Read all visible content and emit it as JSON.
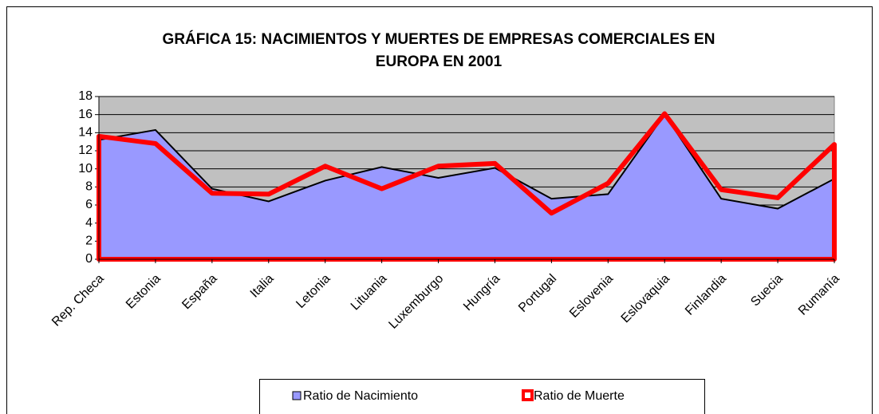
{
  "chart_data": {
    "type": "area",
    "title": "GRÁFICA 15: NACIMIENTOS Y MUERTES DE EMPRESAS COMERCIALES EN EUROPA EN 2001",
    "categories": [
      "Rep. Checa",
      "Estonia",
      "España",
      "Italia",
      "Letonia",
      "Lituania",
      "Luxemburgo",
      "Hungría",
      "Portugal",
      "Eslovenia",
      "Eslovaquia",
      "Finlandia",
      "Suecia",
      "Rumanía"
    ],
    "series": [
      {
        "name": "Ratio de Nacimiento",
        "color": "#9999ff",
        "values": [
          13.2,
          14.3,
          7.8,
          6.4,
          8.7,
          10.2,
          9.0,
          10.1,
          6.7,
          7.2,
          16.0,
          6.7,
          5.6,
          8.9
        ]
      },
      {
        "name": "Ratio de Muerte",
        "color": "#ff0000",
        "values": [
          13.6,
          12.8,
          7.3,
          7.2,
          10.3,
          7.8,
          10.3,
          10.6,
          5.1,
          8.4,
          16.1,
          7.7,
          6.8,
          12.7
        ]
      }
    ],
    "ylim": [
      0,
      18
    ],
    "yticks": [
      0,
      2,
      4,
      6,
      8,
      10,
      12,
      14,
      16,
      18
    ],
    "grid": true,
    "legend": "bottom"
  }
}
